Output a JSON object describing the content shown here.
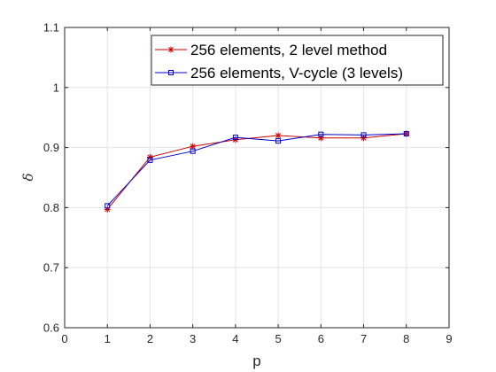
{
  "chart_data": {
    "type": "line",
    "xlabel": "p",
    "ylabel": "δ",
    "xlim": [
      0,
      9
    ],
    "ylim": [
      0.6,
      1.1
    ],
    "xticks": [
      0,
      1,
      2,
      3,
      4,
      5,
      6,
      7,
      8,
      9
    ],
    "yticks": [
      0.6,
      0.7,
      0.8,
      0.9,
      1,
      1.1
    ],
    "xtick_labels": [
      "0",
      "1",
      "2",
      "3",
      "4",
      "5",
      "6",
      "7",
      "8",
      "9"
    ],
    "ytick_labels": [
      "0.6",
      "0.7",
      "0.8",
      "0.9",
      "1",
      "1.1"
    ],
    "grid": true,
    "legend_position": "top-right",
    "x": [
      1,
      2,
      3,
      4,
      5,
      6,
      7,
      8
    ],
    "series": [
      {
        "name": "256 elements, 2 level method",
        "values": [
          0.797,
          0.884,
          0.902,
          0.913,
          0.92,
          0.916,
          0.916,
          0.923
        ],
        "color": "#cc0000",
        "marker": "asterisk"
      },
      {
        "name": "256 elements, V-cycle (3 levels)",
        "values": [
          0.803,
          0.879,
          0.894,
          0.917,
          0.911,
          0.922,
          0.921,
          0.923
        ],
        "color": "#0000cc",
        "marker": "square"
      }
    ]
  }
}
